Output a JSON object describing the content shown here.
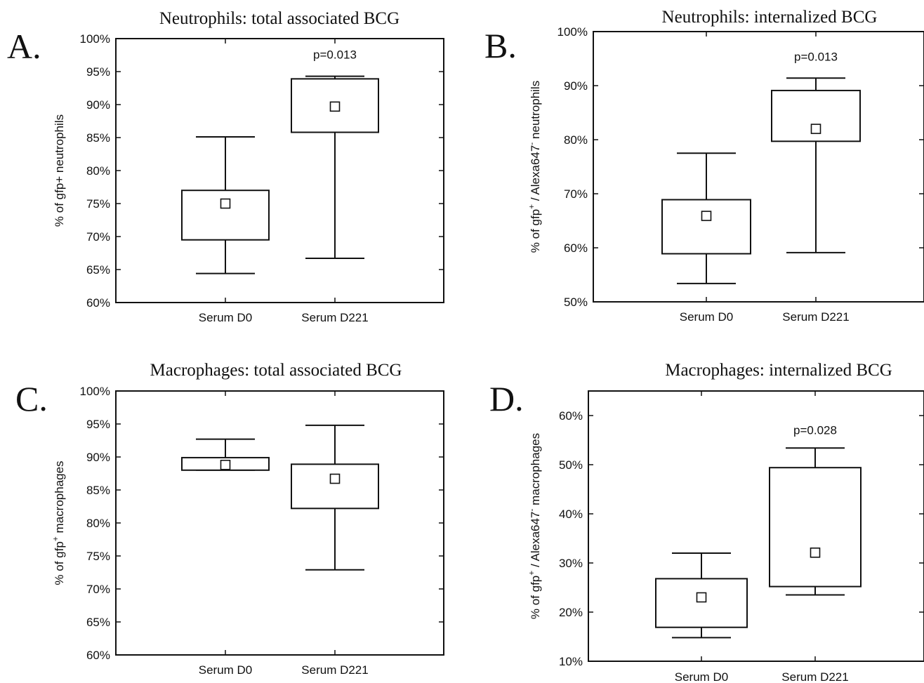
{
  "chart_data": [
    {
      "panel_letter": "A.",
      "type": "box",
      "title": "Neutrophils: total associated BCG",
      "ylabel": "% of gfp+ neutrophils",
      "ylim": [
        60,
        100
      ],
      "yticks": [
        "60%",
        "65%",
        "70%",
        "75%",
        "80%",
        "85%",
        "90%",
        "95%",
        "100%"
      ],
      "ytick_values": [
        60,
        65,
        70,
        75,
        80,
        85,
        90,
        95,
        100
      ],
      "categories": [
        "Serum D0",
        "Serum D221"
      ],
      "boxes": [
        {
          "whisker_low": 64.4,
          "q1": 69.5,
          "mean": 75.0,
          "q3": 77.0,
          "whisker_high": 85.1
        },
        {
          "whisker_low": 66.7,
          "q1": 85.8,
          "mean": 89.7,
          "q3": 93.9,
          "whisker_high": 94.3
        }
      ],
      "annotation": "p=0.013",
      "annotation_y": 97.6
    },
    {
      "panel_letter": "B.",
      "type": "box",
      "title": "Neutrophils: internalized BCG",
      "ylabel_parts": [
        "% of gfp",
        "+",
        " / Alexa647",
        "-",
        " neutrophils"
      ],
      "ylim": [
        50,
        100
      ],
      "yticks": [
        "50%",
        "60%",
        "70%",
        "80%",
        "90%",
        "100%"
      ],
      "ytick_values": [
        50,
        60,
        70,
        80,
        90,
        100
      ],
      "categories": [
        "Serum D0",
        "Serum D221"
      ],
      "boxes": [
        {
          "whisker_low": 53.4,
          "q1": 58.9,
          "mean": 65.9,
          "q3": 68.9,
          "whisker_high": 77.5
        },
        {
          "whisker_low": 59.1,
          "q1": 79.7,
          "mean": 82.0,
          "q3": 89.1,
          "whisker_high": 91.4
        }
      ],
      "annotation": "p=0.013",
      "annotation_y": 95.4
    },
    {
      "panel_letter": "C.",
      "type": "box",
      "title": "Macrophages: total associated BCG",
      "ylabel_parts": [
        "% of gfp",
        "+",
        " macrophages"
      ],
      "ylim": [
        60,
        100
      ],
      "yticks": [
        "60%",
        "65%",
        "70%",
        "75%",
        "80%",
        "85%",
        "90%",
        "95%",
        "100%"
      ],
      "ytick_values": [
        60,
        65,
        70,
        75,
        80,
        85,
        90,
        95,
        100
      ],
      "categories": [
        "Serum D0",
        "Serum D221"
      ],
      "boxes": [
        {
          "whisker_low": 88.0,
          "q1": 88.0,
          "mean": 88.8,
          "q3": 89.9,
          "whisker_high": 92.7
        },
        {
          "whisker_low": 72.9,
          "q1": 82.2,
          "mean": 86.7,
          "q3": 88.9,
          "whisker_high": 94.8
        }
      ],
      "annotation": "",
      "annotation_y": 0
    },
    {
      "panel_letter": "D.",
      "type": "box",
      "title": "Macrophages: internalized BCG",
      "ylabel_parts": [
        "% of gfp",
        "+",
        " / Alexa647",
        "-",
        " macrophages"
      ],
      "ylim": [
        10,
        65
      ],
      "yticks": [
        "10%",
        "20%",
        "30%",
        "40%",
        "50%",
        "60%"
      ],
      "ytick_values": [
        10,
        20,
        30,
        40,
        50,
        60
      ],
      "categories": [
        "Serum D0",
        "Serum D221"
      ],
      "boxes": [
        {
          "whisker_low": 14.8,
          "q1": 16.9,
          "mean": 23.0,
          "q3": 26.8,
          "whisker_high": 32.0
        },
        {
          "whisker_low": 23.5,
          "q1": 25.2,
          "mean": 32.1,
          "q3": 49.4,
          "whisker_high": 53.4
        }
      ],
      "annotation": "p=0.028",
      "annotation_y": 57.1
    }
  ]
}
